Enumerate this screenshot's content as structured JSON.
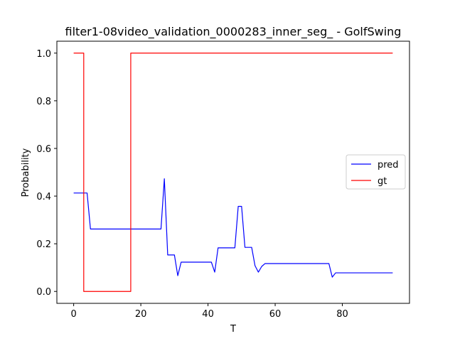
{
  "chart_data": {
    "type": "line",
    "title": "filter1-08video_validation_0000283_inner_seg_ - GolfSwing",
    "xlabel": "T",
    "ylabel": "Probability",
    "xlim": [
      -5,
      100
    ],
    "ylim": [
      -0.05,
      1.05
    ],
    "xticks": [
      0,
      20,
      40,
      60,
      80
    ],
    "yticks": [
      0.0,
      0.2,
      0.4,
      0.6,
      0.8,
      1.0
    ],
    "xtick_labels": [
      "0",
      "20",
      "40",
      "60",
      "80"
    ],
    "ytick_labels": [
      "0.0",
      "0.2",
      "0.4",
      "0.6",
      "0.8",
      "1.0"
    ],
    "grid": false,
    "legend_position": "center-right",
    "series": [
      {
        "name": "pred",
        "color": "#0000ff",
        "step": false,
        "x": [
          0,
          1,
          2,
          3,
          4,
          5,
          6,
          7,
          8,
          9,
          10,
          11,
          12,
          13,
          14,
          15,
          16,
          17,
          18,
          19,
          20,
          21,
          22,
          23,
          24,
          25,
          26,
          27,
          28,
          29,
          30,
          31,
          32,
          33,
          34,
          35,
          36,
          37,
          38,
          39,
          40,
          41,
          42,
          43,
          44,
          45,
          46,
          47,
          48,
          49,
          50,
          51,
          52,
          53,
          54,
          55,
          56,
          57,
          58,
          59,
          60,
          61,
          62,
          63,
          64,
          65,
          66,
          67,
          68,
          69,
          70,
          71,
          72,
          73,
          74,
          75,
          76,
          77,
          78,
          79,
          80,
          81,
          82,
          83,
          84,
          85,
          86,
          87,
          88,
          89,
          90,
          91,
          92,
          93,
          94,
          95
        ],
        "y": [
          0.413,
          0.413,
          0.413,
          0.413,
          0.413,
          0.262,
          0.262,
          0.262,
          0.262,
          0.262,
          0.262,
          0.262,
          0.262,
          0.262,
          0.262,
          0.262,
          0.262,
          0.262,
          0.262,
          0.262,
          0.262,
          0.262,
          0.262,
          0.262,
          0.262,
          0.262,
          0.262,
          0.473,
          0.153,
          0.153,
          0.153,
          0.066,
          0.123,
          0.123,
          0.123,
          0.123,
          0.123,
          0.123,
          0.123,
          0.123,
          0.123,
          0.123,
          0.081,
          0.183,
          0.183,
          0.183,
          0.183,
          0.183,
          0.183,
          0.357,
          0.357,
          0.185,
          0.185,
          0.185,
          0.108,
          0.081,
          0.105,
          0.117,
          0.117,
          0.117,
          0.117,
          0.117,
          0.117,
          0.117,
          0.117,
          0.117,
          0.117,
          0.117,
          0.117,
          0.117,
          0.117,
          0.117,
          0.117,
          0.117,
          0.117,
          0.117,
          0.117,
          0.06,
          0.078,
          0.078,
          0.078,
          0.078,
          0.078,
          0.078,
          0.078,
          0.078,
          0.078,
          0.078,
          0.078,
          0.078,
          0.078,
          0.078,
          0.078,
          0.078,
          0.078,
          0.078
        ]
      },
      {
        "name": "gt",
        "color": "#ff0000",
        "step": true,
        "x": [
          0,
          3,
          3,
          17,
          17,
          95
        ],
        "y": [
          1.0,
          1.0,
          0.0,
          0.0,
          1.0,
          1.0
        ]
      }
    ]
  }
}
